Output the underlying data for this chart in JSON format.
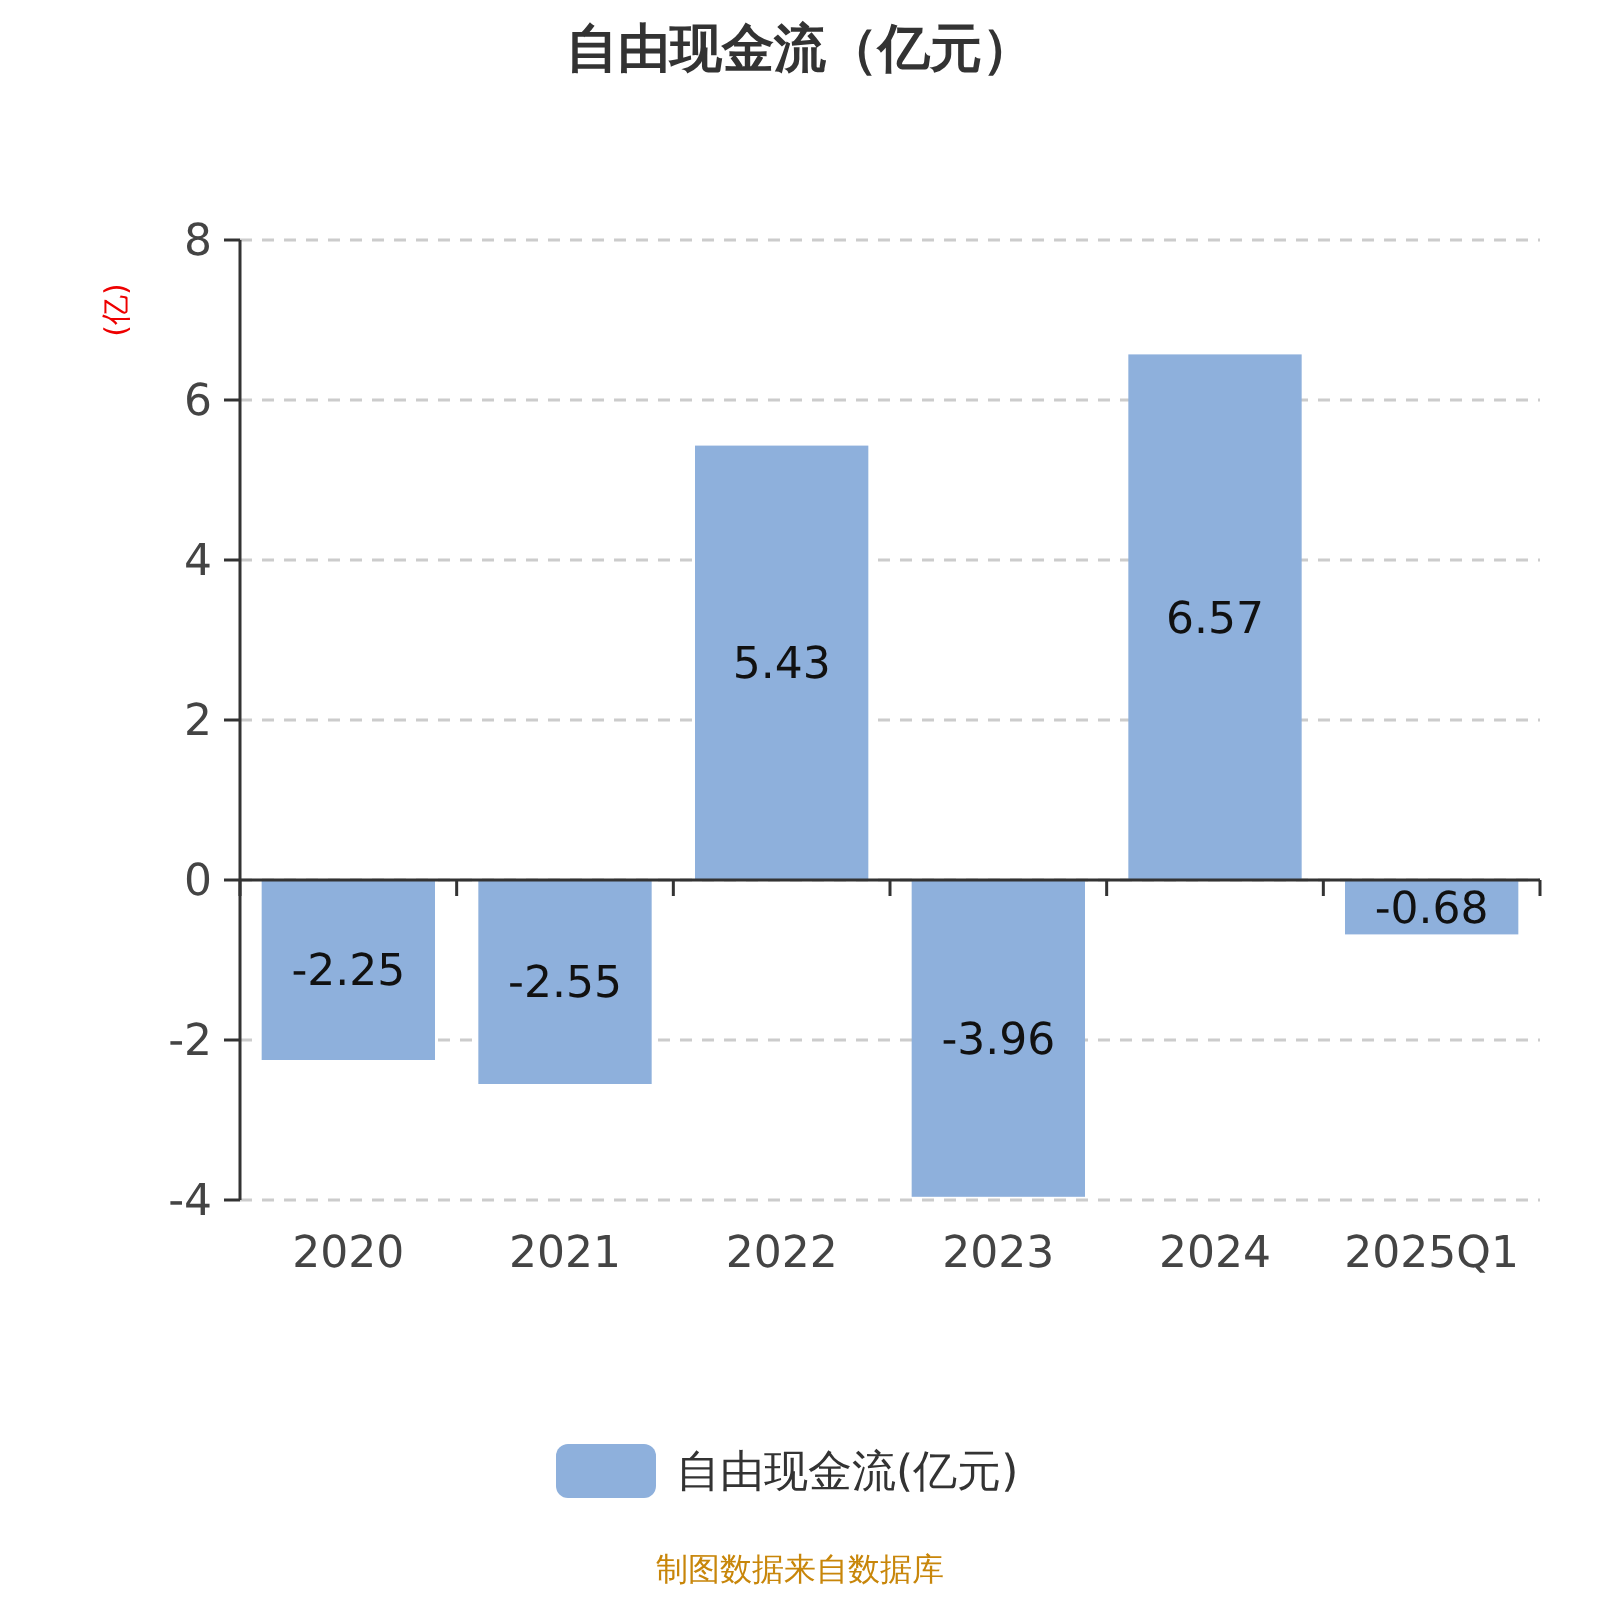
{
  "chart_data": {
    "type": "bar",
    "title": "自由现金流（亿元）",
    "ylabel": "(亿)",
    "categories": [
      "2020",
      "2021",
      "2022",
      "2023",
      "2024",
      "2025Q1"
    ],
    "series": [
      {
        "name": "自由现金流(亿元)",
        "color": "#8eb0dc",
        "values": [
          -2.25,
          -2.55,
          5.43,
          -3.96,
          6.57,
          -0.68
        ]
      }
    ],
    "ylim": [
      -4,
      8
    ],
    "yticks": [
      -4,
      -2,
      0,
      2,
      4,
      6,
      8
    ],
    "grid": "y",
    "legend": "bottom",
    "data_labels": true,
    "annotations": [
      "制图数据来自数据库"
    ]
  }
}
